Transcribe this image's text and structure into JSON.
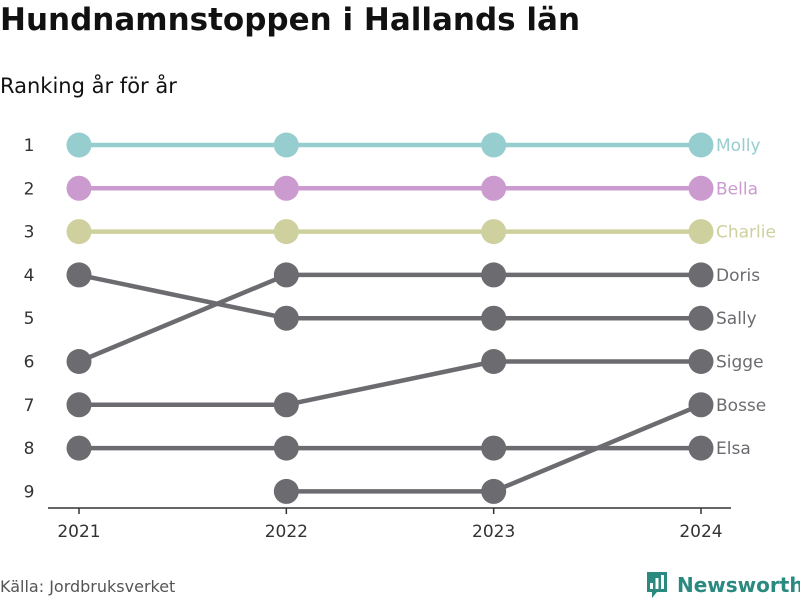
{
  "title": "Hundnamnstoppen i Hallands län",
  "subtitle": "Ranking år för år",
  "source": "Källa: Jordbruksverket",
  "brand": {
    "name": "Newsworthy",
    "icon": "newsworthy-logo-icon",
    "color": "#2a8a80"
  },
  "chart_data": {
    "type": "line",
    "categories": [
      "2021",
      "2022",
      "2023",
      "2024"
    ],
    "y_ticks": [
      1,
      2,
      3,
      4,
      5,
      6,
      7,
      8,
      9
    ],
    "ylim": [
      9,
      1
    ],
    "grid": false,
    "colors": {
      "highlight1": "#96cdcf",
      "highlight2": "#cb9acf",
      "highlight3": "#ced09e",
      "default": "#6c6b70"
    },
    "series": [
      {
        "name": "Molly",
        "values": [
          1,
          1,
          1,
          1
        ],
        "color": "#96cdcf"
      },
      {
        "name": "Bella",
        "values": [
          2,
          2,
          2,
          2
        ],
        "color": "#cb9acf"
      },
      {
        "name": "Charlie",
        "values": [
          3,
          3,
          3,
          3
        ],
        "color": "#ced09e"
      },
      {
        "name": "Doris",
        "values": [
          6,
          4,
          4,
          4
        ],
        "color": "#6c6b70"
      },
      {
        "name": "Sally",
        "values": [
          4,
          5,
          5,
          5
        ],
        "color": "#6c6b70"
      },
      {
        "name": "Sigge",
        "values": [
          7,
          7,
          6,
          6
        ],
        "color": "#6c6b70"
      },
      {
        "name": "Bosse",
        "values": [
          null,
          9,
          9,
          7
        ],
        "color": "#6c6b70"
      },
      {
        "name": "Elsa",
        "values": [
          8,
          8,
          8,
          8
        ],
        "color": "#6c6b70"
      }
    ]
  }
}
